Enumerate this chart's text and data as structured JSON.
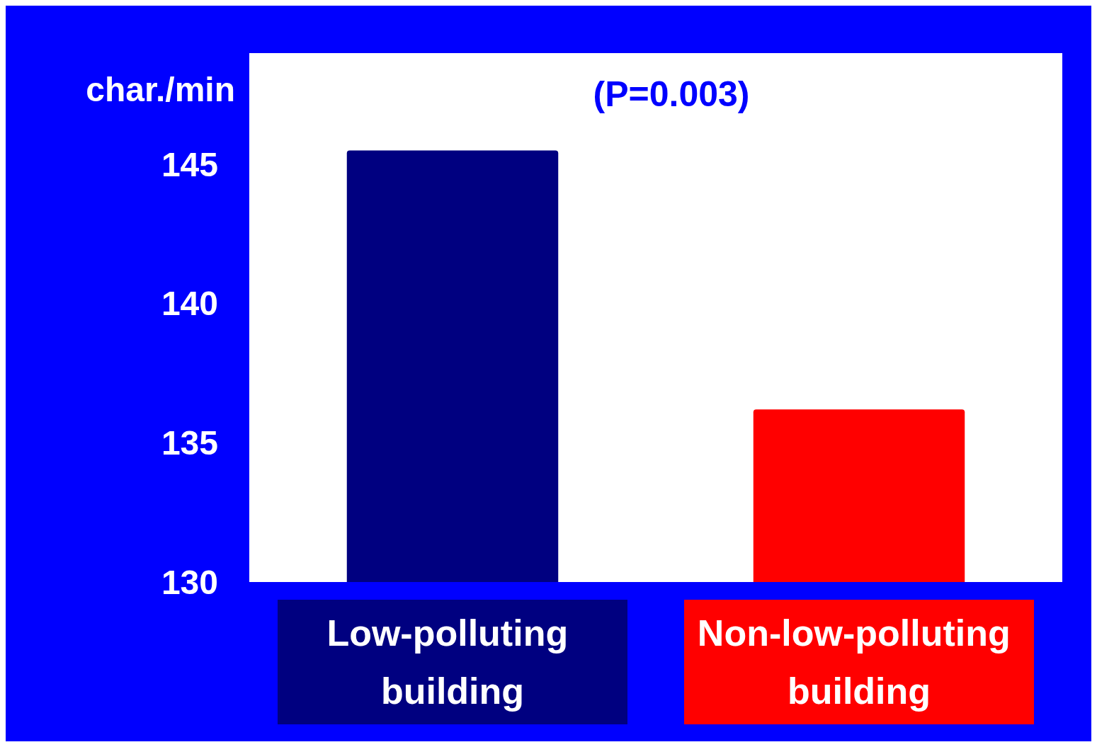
{
  "chart_data": {
    "type": "bar",
    "title": "(P=0.003)",
    "ylabel": "char./min",
    "categories": [
      "Low-polluting building",
      "Non-low-polluting building"
    ],
    "values": [
      145.5,
      136.2
    ],
    "colors": [
      "#000080",
      "#ff0000"
    ],
    "ylim": [
      130,
      149
    ],
    "yticks": [
      130,
      135,
      140,
      145
    ],
    "grid": false
  }
}
